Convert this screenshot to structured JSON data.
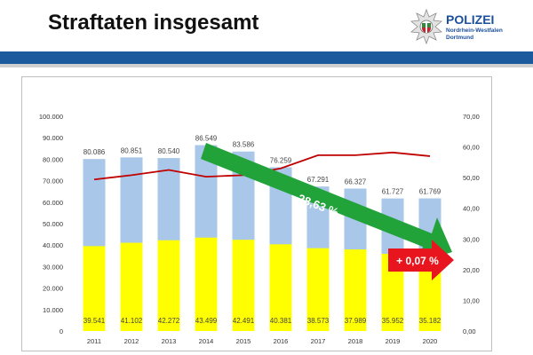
{
  "header": {
    "title": "Straftaten insgesamt",
    "logo": {
      "name": "POLIZEI",
      "region": "Nordrhein-Westfalen",
      "city": "Dortmund"
    }
  },
  "colors": {
    "brand_blue": "#1c5a9e",
    "bar_total": "#a9c7e8",
    "bar_solved": "#ffff00",
    "line": "#c00000",
    "arrow_green": "#22a33a",
    "arrow_red": "#e8141e"
  },
  "chart_data": {
    "type": "bar",
    "categories": [
      "2011",
      "2012",
      "2013",
      "2014",
      "2015",
      "2016",
      "2017",
      "2018",
      "2019",
      "2020"
    ],
    "series": [
      {
        "type": "bar",
        "values": [
          80086,
          80851,
          80540,
          86549,
          83586,
          76259,
          67291,
          66327,
          61727,
          61769
        ],
        "labels": [
          "80.086",
          "80.851",
          "80.540",
          "86.549",
          "83.586",
          "76.259",
          "67.291",
          "66.327",
          "61.727",
          "61.769"
        ]
      },
      {
        "type": "bar",
        "values": [
          39541,
          41102,
          42272,
          43499,
          42491,
          40381,
          38573,
          37989,
          35952,
          35182
        ],
        "labels": [
          "39.541",
          "41.102",
          "42.272",
          "43.499",
          "42.491",
          "40.381",
          "38.573",
          "37.989",
          "35.952",
          "35.182"
        ]
      },
      {
        "type": "line",
        "axis": "right",
        "values": [
          49.4,
          50.8,
          52.5,
          50.3,
          50.8,
          53.0,
          57.3,
          57.3,
          58.2,
          57.0
        ]
      }
    ],
    "y_left": {
      "range": [
        0,
        100000
      ],
      "ticks": [
        0,
        10000,
        20000,
        30000,
        40000,
        50000,
        60000,
        70000,
        80000,
        90000,
        100000
      ],
      "tick_labels": [
        "0",
        "10.000",
        "20.000",
        "30.000",
        "40.000",
        "50.000",
        "60.000",
        "70.000",
        "80.000",
        "90.000",
        "100.000"
      ]
    },
    "y_right": {
      "range": [
        0,
        70
      ],
      "ticks": [
        0,
        10,
        20,
        30,
        40,
        50,
        60,
        70
      ],
      "tick_labels": [
        "0,00",
        "10,00",
        "20,00",
        "30,00",
        "40,00",
        "50,00",
        "60,00",
        "70,00"
      ]
    },
    "annotations": [
      {
        "text": "- 28,63 %",
        "kind": "green-arrow"
      },
      {
        "text": "+ 0,07 %",
        "kind": "red-arrow"
      }
    ],
    "grid": false,
    "legend": "none"
  }
}
